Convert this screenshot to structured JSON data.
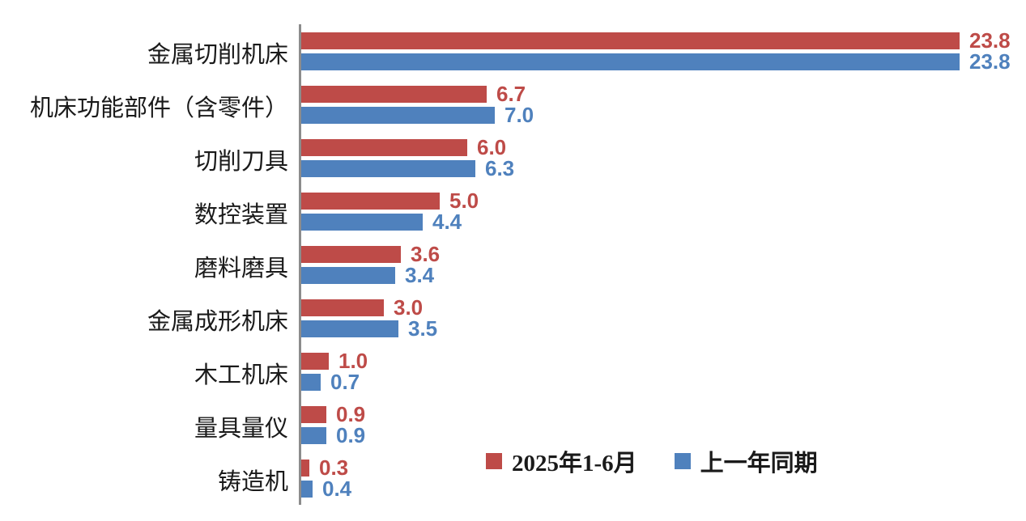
{
  "chart_data": {
    "type": "bar",
    "orientation": "horizontal",
    "title": "",
    "xlabel": "",
    "ylabel": "",
    "grid": false,
    "xlim": [
      0,
      26
    ],
    "legend_position": "bottom-right",
    "axis_color": "#8c8c8c",
    "value_label_format": "one decimal, colored to match series, right of bar",
    "categories": [
      "金属切削机床",
      "机床功能部件（含零件）",
      "切削刀具",
      "数控装置",
      "磨料磨具",
      "金属成形机床",
      "木工机床",
      "量具量仪",
      "铸造机"
    ],
    "series": [
      {
        "name": "2025年1-6月",
        "color": "#be4b48",
        "values": [
          23.8,
          6.7,
          6.0,
          5.0,
          3.6,
          3.0,
          1.0,
          0.9,
          0.3
        ]
      },
      {
        "name": "上一年同期",
        "color": "#4f81bd",
        "values": [
          23.8,
          7.0,
          6.3,
          4.4,
          3.4,
          3.5,
          0.7,
          0.9,
          0.4
        ]
      }
    ]
  }
}
